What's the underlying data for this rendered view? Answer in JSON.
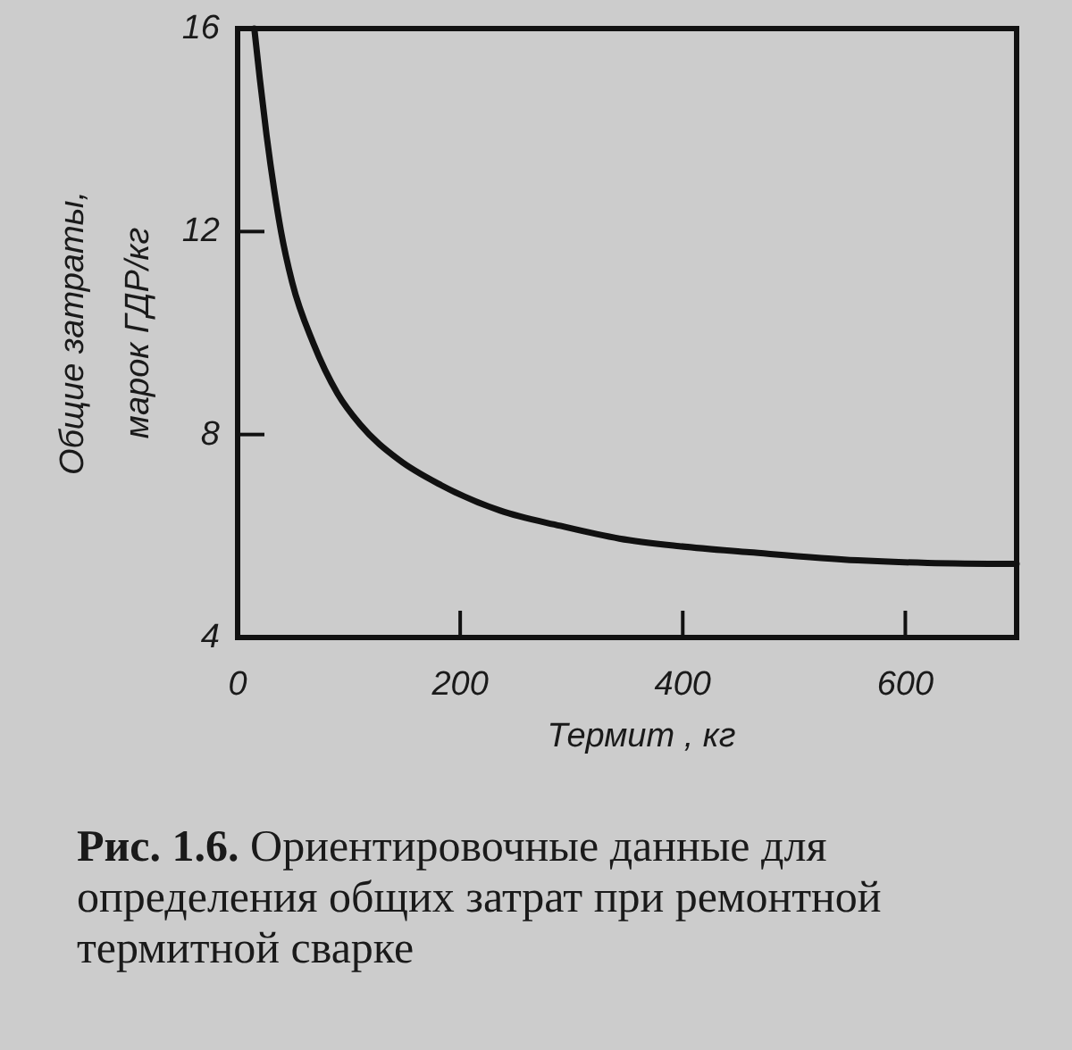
{
  "chart_data": {
    "type": "line",
    "xlabel": "Термит , кг",
    "ylabel": "Общие затраты,\nмарок ГДР/кг",
    "x": [
      15,
      20,
      26,
      33,
      39,
      49,
      68,
      90,
      110,
      145,
      183,
      236,
      290,
      343,
      397,
      460,
      557,
      620,
      700
    ],
    "series": [
      {
        "color": "#111111",
        "values": [
          16,
          15,
          13.9,
          12.8,
          12,
          11,
          9.8,
          8.8,
          8.2,
          7.5,
          7.0,
          6.5,
          6.2,
          5.95,
          5.8,
          5.68,
          5.52,
          5.47,
          5.45
        ]
      }
    ],
    "xlim": [
      0,
      700
    ],
    "ylim": [
      4,
      16
    ],
    "xticks": [
      0,
      200,
      400,
      600
    ],
    "yticks": [
      4,
      8,
      12,
      16
    ],
    "line_style": "solid",
    "annotations": [
      "Рис. 1.6. Ориентировочные данные для определения общих затрат при ремонтной термитной сварке"
    ]
  }
}
